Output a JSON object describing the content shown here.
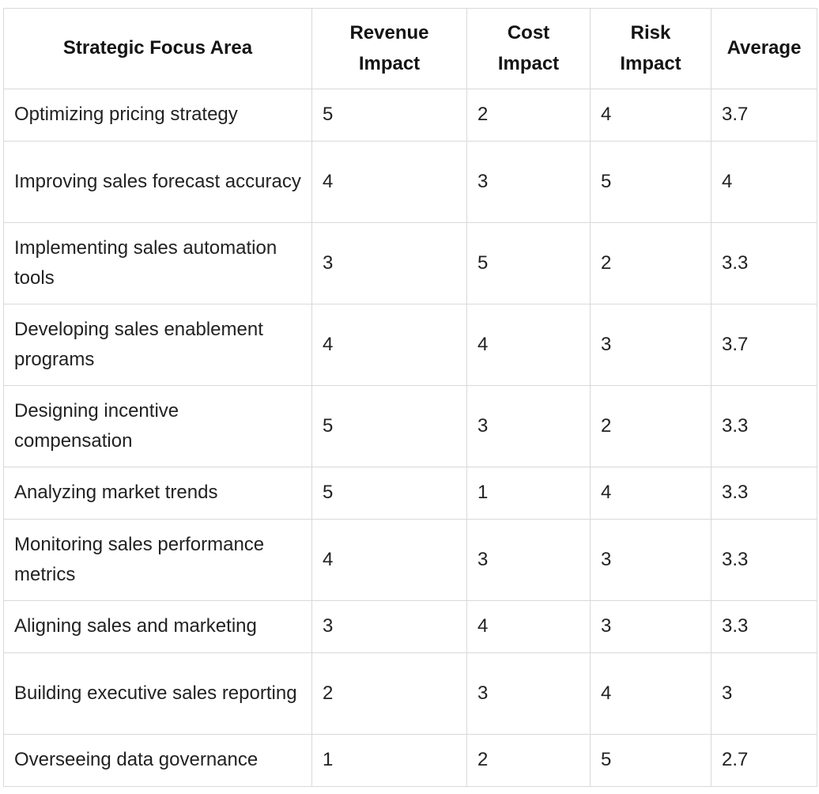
{
  "table": {
    "headers": [
      "Strategic Focus Area",
      "Revenue Impact",
      "Cost Impact",
      "Risk Impact",
      "Average"
    ],
    "rows": [
      {
        "area": "Optimizing pricing strategy",
        "revenue": "5",
        "cost": "2",
        "risk": "4",
        "average": "3.7"
      },
      {
        "area": "Improving sales forecast accuracy",
        "revenue": "4",
        "cost": "3",
        "risk": "5",
        "average": "4"
      },
      {
        "area": "Implementing sales automation tools",
        "revenue": "3",
        "cost": "5",
        "risk": "2",
        "average": "3.3"
      },
      {
        "area": "Developing sales enablement programs",
        "revenue": "4",
        "cost": "4",
        "risk": "3",
        "average": "3.7"
      },
      {
        "area": "Designing incentive compensation",
        "revenue": "5",
        "cost": "3",
        "risk": "2",
        "average": "3.3"
      },
      {
        "area": "Analyzing market trends",
        "revenue": "5",
        "cost": "1",
        "risk": "4",
        "average": "3.3"
      },
      {
        "area": "Monitoring sales performance metrics",
        "revenue": "4",
        "cost": "3",
        "risk": "3",
        "average": "3.3"
      },
      {
        "area": "Aligning sales and marketing",
        "revenue": "3",
        "cost": "4",
        "risk": "3",
        "average": "3.3"
      },
      {
        "area": "Building executive sales reporting",
        "revenue": "2",
        "cost": "3",
        "risk": "4",
        "average": "3"
      },
      {
        "area": "Overseeing data governance",
        "revenue": "1",
        "cost": "2",
        "risk": "5",
        "average": "2.7"
      }
    ]
  }
}
